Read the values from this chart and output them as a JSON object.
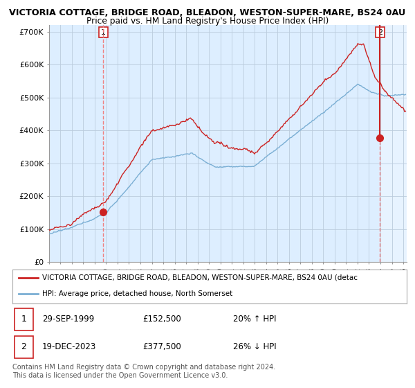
{
  "title_line1": "VICTORIA COTTAGE, BRIDGE ROAD, BLEADON, WESTON-SUPER-MARE, BS24 0AU",
  "title_line2": "Price paid vs. HM Land Registry's House Price Index (HPI)",
  "ylim": [
    0,
    720000
  ],
  "yticks": [
    0,
    100000,
    200000,
    300000,
    400000,
    500000,
    600000,
    700000
  ],
  "ytick_labels": [
    "£0",
    "£100K",
    "£200K",
    "£300K",
    "£400K",
    "£500K",
    "£600K",
    "£700K"
  ],
  "hpi_color": "#7bafd4",
  "price_color": "#cc2222",
  "vline_color": "#f08080",
  "bg_plot_color": "#ddeeff",
  "bg_color": "#ffffff",
  "grid_color": "#bbccdd",
  "point1_x": 1999.75,
  "point1_y": 152500,
  "point1_label": "1",
  "point2_x": 2023.96,
  "point2_y": 377500,
  "point2_label": "2",
  "legend_line1": "VICTORIA COTTAGE, BRIDGE ROAD, BLEADON, WESTON-SUPER-MARE, BS24 0AU (detac",
  "legend_line2": "HPI: Average price, detached house, North Somerset",
  "table_row1": [
    "1",
    "29-SEP-1999",
    "£152,500",
    "20% ↑ HPI"
  ],
  "table_row2": [
    "2",
    "19-DEC-2023",
    "£377,500",
    "26% ↓ HPI"
  ],
  "footer": "Contains HM Land Registry data © Crown copyright and database right 2024.\nThis data is licensed under the Open Government Licence v3.0.",
  "xlim_left": 1995.0,
  "xlim_right": 2026.3
}
